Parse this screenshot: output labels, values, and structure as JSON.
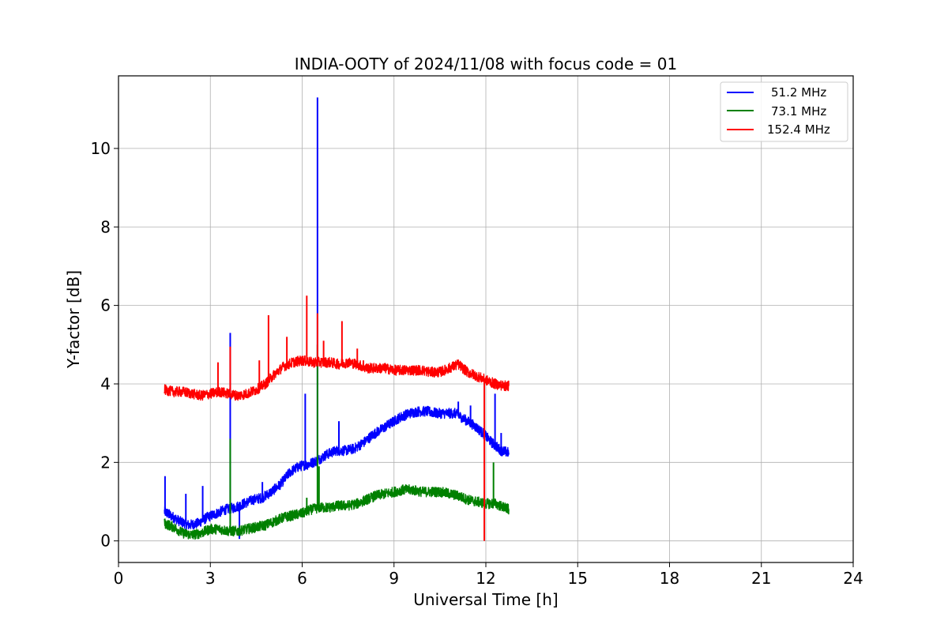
{
  "chart_data": {
    "type": "line",
    "title": "INDIA-OOTY of 2024/11/08 with focus code = 01",
    "xlabel": "Universal Time [h]",
    "ylabel": "Y-factor [dB]",
    "xlim": [
      0,
      24
    ],
    "ylim": [
      -0.55,
      11.85
    ],
    "xticks": [
      0,
      3,
      6,
      9,
      12,
      15,
      18,
      21,
      24
    ],
    "yticks": [
      0,
      2,
      4,
      6,
      8,
      10
    ],
    "xtick_labels": [
      "0",
      "3",
      "6",
      "9",
      "12",
      "15",
      "18",
      "21",
      "24"
    ],
    "ytick_labels": [
      "0",
      "2",
      "4",
      "6",
      "8",
      "10"
    ],
    "grid": true,
    "legend_position": "top-right",
    "series": [
      {
        "name": "51.2 MHz",
        "color": "#0000ff",
        "x": [
          1.5,
          1.7,
          2.0,
          2.3,
          2.6,
          2.9,
          3.2,
          3.5,
          3.8,
          4.1,
          4.4,
          4.7,
          5.0,
          5.3,
          5.6,
          5.9,
          6.2,
          6.5,
          6.8,
          7.1,
          7.4,
          7.7,
          8.0,
          8.3,
          8.6,
          8.9,
          9.2,
          9.5,
          9.8,
          10.1,
          10.4,
          10.7,
          11.0,
          11.3,
          11.6,
          11.9,
          12.2,
          12.5,
          12.75
        ],
        "y": [
          0.75,
          0.65,
          0.5,
          0.4,
          0.45,
          0.6,
          0.7,
          0.8,
          0.85,
          0.95,
          1.05,
          1.1,
          1.25,
          1.45,
          1.75,
          1.9,
          1.95,
          2.05,
          2.2,
          2.3,
          2.3,
          2.35,
          2.5,
          2.7,
          2.85,
          3.0,
          3.15,
          3.25,
          3.3,
          3.3,
          3.25,
          3.25,
          3.25,
          3.1,
          2.95,
          2.75,
          2.5,
          2.3,
          2.25
        ],
        "spikes": [
          [
            1.52,
            1.65
          ],
          [
            2.2,
            1.2
          ],
          [
            2.75,
            1.4
          ],
          [
            3.65,
            5.3
          ],
          [
            3.95,
            0.05
          ],
          [
            4.7,
            1.5
          ],
          [
            6.1,
            3.75
          ],
          [
            6.5,
            11.3
          ],
          [
            6.55,
            2.1
          ],
          [
            7.2,
            3.05
          ],
          [
            11.1,
            3.55
          ],
          [
            11.5,
            3.45
          ],
          [
            12.3,
            3.75
          ],
          [
            12.5,
            2.75
          ]
        ]
      },
      {
        "name": "73.1 MHz",
        "color": "#008000",
        "x": [
          1.5,
          1.8,
          2.1,
          2.4,
          2.7,
          3.0,
          3.3,
          3.6,
          3.9,
          4.2,
          4.5,
          4.8,
          5.1,
          5.4,
          5.7,
          6.0,
          6.3,
          6.6,
          6.9,
          7.2,
          7.5,
          7.8,
          8.1,
          8.4,
          8.7,
          9.0,
          9.3,
          9.6,
          9.9,
          10.2,
          10.5,
          10.8,
          11.1,
          11.4,
          11.7,
          12.0,
          12.3,
          12.6,
          12.75
        ],
        "y": [
          0.45,
          0.35,
          0.2,
          0.15,
          0.2,
          0.3,
          0.3,
          0.25,
          0.25,
          0.3,
          0.35,
          0.4,
          0.5,
          0.6,
          0.65,
          0.7,
          0.8,
          0.85,
          0.85,
          0.9,
          0.9,
          0.95,
          1.05,
          1.15,
          1.2,
          1.25,
          1.3,
          1.3,
          1.25,
          1.25,
          1.25,
          1.2,
          1.15,
          1.05,
          1.0,
          0.95,
          0.95,
          0.85,
          0.8
        ],
        "spikes": [
          [
            3.65,
            2.6
          ],
          [
            6.15,
            1.1
          ],
          [
            6.5,
            5.0
          ],
          [
            6.55,
            1.9
          ],
          [
            12.25,
            2.0
          ]
        ]
      },
      {
        "name": "152.4 MHz",
        "color": "#ff0000",
        "x": [
          1.5,
          1.8,
          2.1,
          2.4,
          2.7,
          3.0,
          3.3,
          3.6,
          3.9,
          4.2,
          4.5,
          4.8,
          5.1,
          5.4,
          5.7,
          6.0,
          6.3,
          6.6,
          6.9,
          7.2,
          7.5,
          7.8,
          8.1,
          8.4,
          8.7,
          9.0,
          9.3,
          9.6,
          9.9,
          10.2,
          10.5,
          10.8,
          11.1,
          11.4,
          11.7,
          12.0,
          12.3,
          12.6,
          12.75
        ],
        "y": [
          3.85,
          3.8,
          3.8,
          3.75,
          3.7,
          3.75,
          3.8,
          3.75,
          3.7,
          3.75,
          3.85,
          4.0,
          4.25,
          4.45,
          4.55,
          4.6,
          4.55,
          4.55,
          4.55,
          4.5,
          4.55,
          4.5,
          4.4,
          4.4,
          4.4,
          4.35,
          4.35,
          4.35,
          4.35,
          4.3,
          4.3,
          4.4,
          4.5,
          4.3,
          4.2,
          4.1,
          4.0,
          3.95,
          3.95
        ],
        "spikes": [
          [
            3.25,
            4.55
          ],
          [
            3.65,
            4.95
          ],
          [
            4.6,
            4.6
          ],
          [
            4.9,
            5.75
          ],
          [
            5.5,
            5.2
          ],
          [
            6.15,
            6.25
          ],
          [
            6.5,
            5.8
          ],
          [
            6.7,
            5.1
          ],
          [
            7.3,
            5.6
          ],
          [
            7.8,
            4.9
          ],
          [
            8.0,
            4.6
          ],
          [
            11.95,
            0.0
          ]
        ]
      }
    ]
  }
}
